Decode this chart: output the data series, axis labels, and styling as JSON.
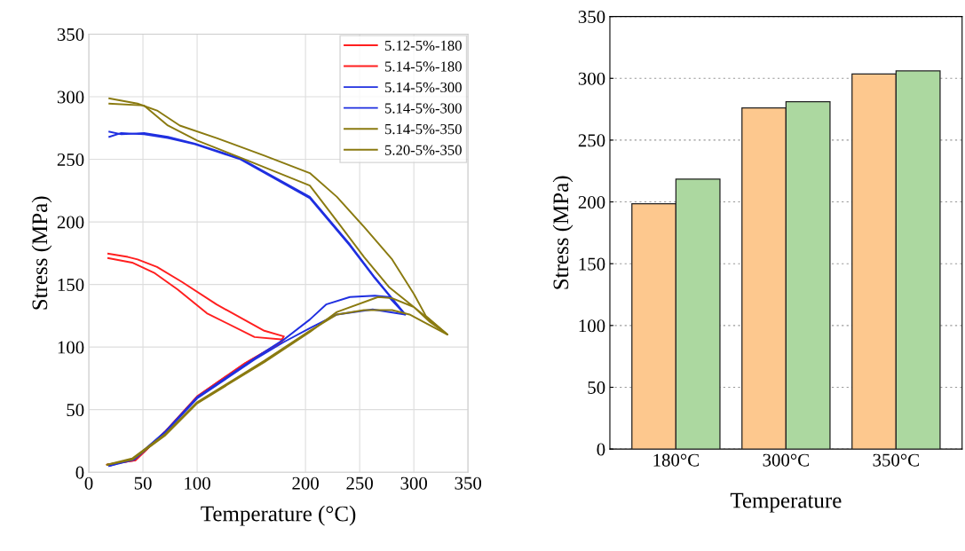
{
  "chart_data": [
    {
      "type": "line",
      "xlabel": "Temperature (°C)",
      "ylabel": "Stress (MPa)",
      "xlim": [
        0,
        350
      ],
      "ylim": [
        0,
        350
      ],
      "xticks": [
        0,
        50,
        100,
        200,
        250,
        300,
        350
      ],
      "yticks": [
        0,
        50,
        100,
        150,
        200,
        250,
        300,
        350
      ],
      "grid": true,
      "legend": "top right",
      "series": [
        {
          "name": "5.12-5%-180",
          "color": "#ff1f1f",
          "x": [
            17,
            43,
            70,
            100,
            144,
            176,
            180,
            162,
            118,
            86,
            63,
            45,
            36,
            18
          ],
          "values": [
            6,
            9.5,
            32,
            60.5,
            87,
            103,
            108.5,
            113,
            134,
            152,
            164,
            170,
            172,
            174.6
          ]
        },
        {
          "name": "5.14-5%-180",
          "color": "#ff1f1f",
          "x": [
            17,
            43,
            70,
            100,
            144,
            176,
            180,
            153,
            109,
            82,
            61,
            40,
            18
          ],
          "values": [
            6,
            9.5,
            32,
            60.5,
            87,
            103,
            106,
            108,
            127,
            146,
            159,
            167.5,
            171
          ]
        },
        {
          "name": "5.14-5%-300",
          "color": "#1f2fe0",
          "x": [
            19,
            42,
            70,
            100,
            153,
            180,
            204,
            219,
            241,
            264,
            277,
            292,
            264,
            241,
            204,
            140,
            98,
            73,
            51,
            30,
            19
          ],
          "values": [
            5,
            11,
            32,
            60,
            91,
            106,
            122,
            134,
            140,
            141,
            140,
            126,
            155.6,
            182,
            220,
            250.6,
            262.5,
            268,
            271,
            270,
            272
          ]
        },
        {
          "name": "5.14-5%-300",
          "color": "#1f2fe0",
          "x": [
            19,
            42,
            70,
            100,
            153,
            180,
            204,
            229,
            262,
            292,
            264,
            241,
            204,
            140,
            98,
            73,
            51,
            30,
            19
          ],
          "values": [
            5,
            10,
            31,
            59,
            90,
            104,
            115,
            126,
            130,
            126,
            155,
            181,
            219,
            250,
            262,
            267,
            270,
            271,
            268
          ]
        },
        {
          "name": "5.14-5%-350",
          "color": "#8a7a10",
          "x": [
            17,
            40,
            70,
            100,
            162,
            204,
            229,
            254,
            280,
            296,
            309,
            331,
            311,
            300,
            280,
            254,
            229,
            204,
            162,
            118,
            84,
            63,
            45,
            19
          ],
          "values": [
            6,
            11,
            30,
            56,
            89,
            113,
            126,
            129.5,
            129.5,
            126,
            120,
            110,
            125,
            142.5,
            170,
            196,
            220,
            239,
            253,
            267,
            277,
            289,
            294.5,
            298.6
          ]
        },
        {
          "name": "5.20-5%-350",
          "color": "#8a7a10",
          "x": [
            17,
            40,
            70,
            100,
            162,
            204,
            229,
            267,
            280,
            300,
            317,
            331,
            315,
            300,
            277,
            254,
            229,
            204,
            144,
            100,
            73,
            51,
            19
          ],
          "values": [
            6,
            10,
            29,
            55,
            88,
            112,
            128,
            140,
            139,
            132,
            120,
            110,
            120,
            132,
            148,
            172,
            200.7,
            229,
            250,
            265,
            277,
            293,
            294.5
          ]
        }
      ]
    },
    {
      "type": "bar",
      "xlabel": "Temperature",
      "ylabel": "Stress (MPa)",
      "categories": [
        "180°C",
        "300°C",
        "350°C"
      ],
      "ylim": [
        0,
        350
      ],
      "yticks": [
        0,
        50,
        100,
        150,
        200,
        250,
        300,
        350
      ],
      "grid": "y",
      "series": [
        {
          "color": "#fdc88e",
          "values": [
            198.5,
            276,
            303.5
          ]
        },
        {
          "color": "#acd8a0",
          "values": [
            218.5,
            281,
            306
          ]
        }
      ]
    }
  ]
}
